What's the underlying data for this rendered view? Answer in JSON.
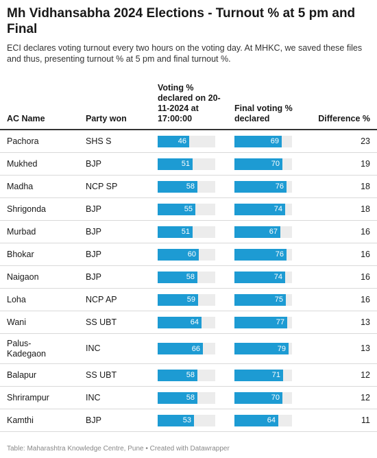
{
  "title": "Mh Vidhansabha 2024 Elections - Turnout % at 5 pm and Final",
  "description": "ECI declares voting turnout every two hours on the voting day. At MHKC, we saved these files and thus, presenting turnout % at 5 pm and final turnout %.",
  "footer": "Table: Maharashtra Knowledge Centre, Pune • Created with Datawrapper",
  "colors": {
    "bar": "#1d9bd3",
    "bar_bg": "#ececec"
  },
  "chart_data": {
    "type": "table",
    "columns": {
      "ac_name": "AC Name",
      "party": "Party won",
      "turnout_5pm": "Voting % declared on 20-11-2024 at 17:00:00",
      "final": "Final voting % declared",
      "diff": "Difference %"
    },
    "bar_max": 84,
    "rows": [
      {
        "ac_name": "Pachora",
        "party": "SHS S",
        "turnout_5pm": 46,
        "final": 69,
        "diff": 23
      },
      {
        "ac_name": "Mukhed",
        "party": "BJP",
        "turnout_5pm": 51,
        "final": 70,
        "diff": 19
      },
      {
        "ac_name": "Madha",
        "party": "NCP SP",
        "turnout_5pm": 58,
        "final": 76,
        "diff": 18
      },
      {
        "ac_name": "Shrigonda",
        "party": "BJP",
        "turnout_5pm": 55,
        "final": 74,
        "diff": 18
      },
      {
        "ac_name": "Murbad",
        "party": "BJP",
        "turnout_5pm": 51,
        "final": 67,
        "diff": 16
      },
      {
        "ac_name": "Bhokar",
        "party": "BJP",
        "turnout_5pm": 60,
        "final": 76,
        "diff": 16
      },
      {
        "ac_name": "Naigaon",
        "party": "BJP",
        "turnout_5pm": 58,
        "final": 74,
        "diff": 16
      },
      {
        "ac_name": "Loha",
        "party": "NCP AP",
        "turnout_5pm": 59,
        "final": 75,
        "diff": 16
      },
      {
        "ac_name": "Wani",
        "party": "SS UBT",
        "turnout_5pm": 64,
        "final": 77,
        "diff": 13
      },
      {
        "ac_name": "Palus-\nKadegaon",
        "party": "INC",
        "turnout_5pm": 66,
        "final": 79,
        "diff": 13
      },
      {
        "ac_name": "Balapur",
        "party": "SS UBT",
        "turnout_5pm": 58,
        "final": 71,
        "diff": 12
      },
      {
        "ac_name": "Shrirampur",
        "party": "INC",
        "turnout_5pm": 58,
        "final": 70,
        "diff": 12
      },
      {
        "ac_name": "Kamthi",
        "party": "BJP",
        "turnout_5pm": 53,
        "final": 64,
        "diff": 11
      }
    ]
  }
}
